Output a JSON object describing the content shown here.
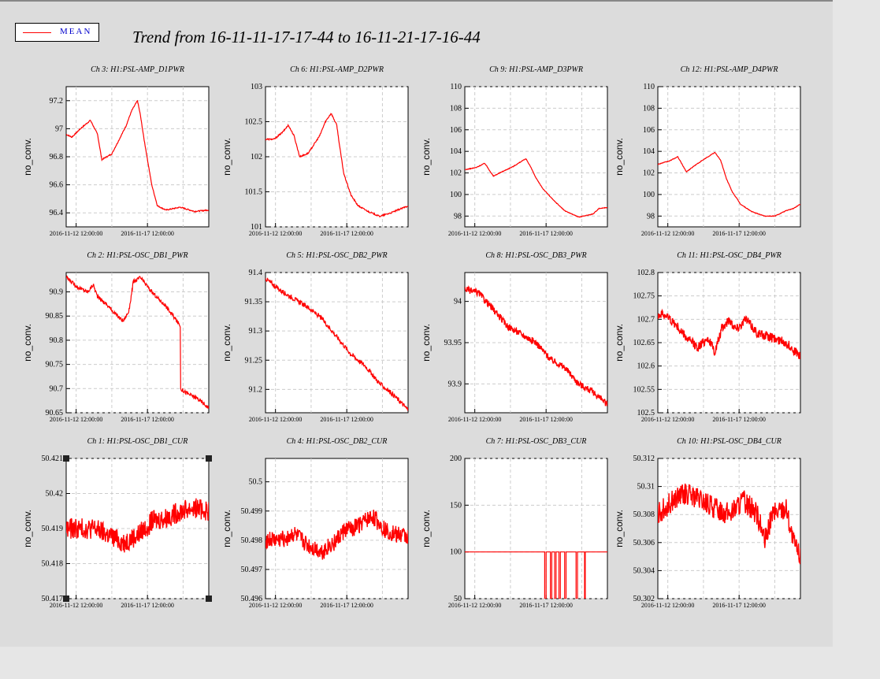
{
  "legend": {
    "label": "MEAN"
  },
  "page_title": "Trend from 16-11-11-17-17-44 to 16-11-21-17-16-44",
  "colors": {
    "series": "#ff0000",
    "background": "#dcdcdc"
  },
  "chart_data": [
    {
      "type": "line",
      "title": "Ch 3: H1:PSL-AMP_D1PWR",
      "ylabel": "no_conv.",
      "ylim": [
        96.3,
        97.3
      ],
      "yticks": [
        "96.4",
        "96.6",
        "96.8",
        "97",
        "97.2"
      ],
      "xticks": [
        "2016-11-12 12:00:00",
        "2016-11-17 12:00:00"
      ],
      "grid": true,
      "noise": 0.004,
      "series": [
        {
          "x": [
            0,
            0.04,
            0.1,
            0.17,
            0.22,
            0.25,
            0.32,
            0.42,
            0.46,
            0.5,
            0.52,
            0.55,
            0.6,
            0.64,
            0.7,
            0.8,
            0.9,
            1.0
          ],
          "y": [
            96.96,
            96.94,
            97.0,
            97.06,
            96.96,
            96.78,
            96.82,
            97.02,
            97.13,
            97.2,
            97.1,
            96.9,
            96.6,
            96.45,
            96.42,
            96.44,
            96.41,
            96.42
          ]
        }
      ]
    },
    {
      "type": "line",
      "title": "Ch 6: H1:PSL-AMP_D2PWR",
      "ylabel": "no_conv.",
      "ylim": [
        101.0,
        103.0
      ],
      "yticks": [
        "101",
        "101.5",
        "102",
        "102.5",
        "103"
      ],
      "xticks": [
        "2016-11-12 12:00:00",
        "2016-11-17 12:00:00"
      ],
      "grid": true,
      "noise": 0.01,
      "series": [
        {
          "x": [
            0,
            0.06,
            0.12,
            0.16,
            0.2,
            0.24,
            0.3,
            0.38,
            0.42,
            0.46,
            0.5,
            0.52,
            0.55,
            0.6,
            0.65,
            0.72,
            0.8,
            0.88,
            1.0
          ],
          "y": [
            102.25,
            102.25,
            102.35,
            102.45,
            102.3,
            102.0,
            102.05,
            102.3,
            102.5,
            102.62,
            102.45,
            102.15,
            101.75,
            101.45,
            101.3,
            101.22,
            101.15,
            101.2,
            101.3
          ]
        }
      ]
    },
    {
      "type": "line",
      "title": "Ch 9: H1:PSL-AMP_D3PWR",
      "ylabel": "no_conv.",
      "ylim": [
        97,
        110
      ],
      "yticks": [
        "98",
        "100",
        "102",
        "104",
        "106",
        "108",
        "110"
      ],
      "xticks": [
        "2016-11-12 12:00:00",
        "2016-11-17 12:00:00"
      ],
      "grid": true,
      "noise": 0.03,
      "series": [
        {
          "x": [
            0,
            0.08,
            0.14,
            0.2,
            0.26,
            0.34,
            0.4,
            0.43,
            0.46,
            0.5,
            0.55,
            0.62,
            0.7,
            0.75,
            0.8,
            0.9,
            0.94,
            1.0
          ],
          "y": [
            102.3,
            102.5,
            102.9,
            101.7,
            102.1,
            102.6,
            103.1,
            103.3,
            102.6,
            101.5,
            100.5,
            99.5,
            98.5,
            98.2,
            97.9,
            98.2,
            98.7,
            98.8
          ]
        }
      ]
    },
    {
      "type": "line",
      "title": "Ch 12: H1:PSL-AMP_D4PWR",
      "ylabel": "no_conv.",
      "ylim": [
        97,
        110
      ],
      "yticks": [
        "98",
        "100",
        "102",
        "104",
        "106",
        "108",
        "110"
      ],
      "xticks": [
        "2016-11-12 12:00:00",
        "2016-11-17 12:00:00"
      ],
      "grid": true,
      "noise": 0.03,
      "series": [
        {
          "x": [
            0,
            0.08,
            0.14,
            0.2,
            0.26,
            0.34,
            0.4,
            0.44,
            0.48,
            0.52,
            0.58,
            0.66,
            0.75,
            0.82,
            0.9,
            0.95,
            1.0
          ],
          "y": [
            102.8,
            103.1,
            103.5,
            102.1,
            102.7,
            103.4,
            103.9,
            103.2,
            101.5,
            100.3,
            99.1,
            98.4,
            98.0,
            98.0,
            98.5,
            98.7,
            99.1
          ]
        }
      ]
    },
    {
      "type": "line",
      "title": "Ch 2: H1:PSL-OSC_DB1_PWR",
      "ylabel": "no_conv.",
      "ylim": [
        90.65,
        90.94
      ],
      "yticks": [
        "90.65",
        "90.7",
        "90.75",
        "90.8",
        "90.85",
        "90.9"
      ],
      "xticks": [
        "2016-11-12 12:00:00",
        "2016-11-17 12:00:00"
      ],
      "grid": true,
      "noise": 0.004,
      "series": [
        {
          "x": [
            0,
            0.08,
            0.15,
            0.19,
            0.22,
            0.28,
            0.36,
            0.4,
            0.44,
            0.47,
            0.52,
            0.6,
            0.7,
            0.8,
            0.8001,
            0.85,
            0.92,
            1.0
          ],
          "y": [
            90.93,
            90.91,
            90.9,
            90.915,
            90.89,
            90.875,
            90.85,
            90.84,
            90.86,
            90.92,
            90.93,
            90.9,
            90.87,
            90.83,
            90.7,
            90.69,
            90.68,
            90.66
          ]
        }
      ]
    },
    {
      "type": "line",
      "title": "Ch 5: H1:PSL-OSC_DB2_PWR",
      "ylabel": "no_conv.",
      "ylim": [
        91.16,
        91.4
      ],
      "yticks": [
        "91.2",
        "91.25",
        "91.3",
        "91.35",
        "91.4"
      ],
      "xticks": [
        "2016-11-12 12:00:00",
        "2016-11-17 12:00:00"
      ],
      "grid": true,
      "noise": 0.004,
      "series": [
        {
          "x": [
            0,
            0.1,
            0.2,
            0.3,
            0.4,
            0.5,
            0.6,
            0.7,
            0.8,
            0.9,
            1.0
          ],
          "y": [
            91.39,
            91.37,
            91.355,
            91.34,
            91.32,
            91.29,
            91.26,
            91.24,
            91.21,
            91.19,
            91.165
          ]
        }
      ]
    },
    {
      "type": "line",
      "title": "Ch 8: H1:PSL-OSC_DB3_PWR",
      "ylabel": "no_conv.",
      "ylim": [
        93.865,
        94.035
      ],
      "yticks": [
        "93.9",
        "93.95",
        "94"
      ],
      "xticks": [
        "2016-11-12 12:00:00",
        "2016-11-17 12:00:00"
      ],
      "grid": true,
      "noise": 0.004,
      "series": [
        {
          "x": [
            0,
            0.1,
            0.2,
            0.3,
            0.4,
            0.5,
            0.6,
            0.7,
            0.8,
            0.9,
            1.0
          ],
          "y": [
            94.015,
            94.01,
            93.99,
            93.97,
            93.96,
            93.95,
            93.93,
            93.92,
            93.9,
            93.89,
            93.875
          ]
        }
      ]
    },
    {
      "type": "line",
      "title": "Ch 11: H1:PSL-OSC_DB4_PWR",
      "ylabel": "no_conv.",
      "ylim": [
        102.5,
        102.8
      ],
      "yticks": [
        "102.5",
        "102.55",
        "102.6",
        "102.65",
        "102.7",
        "102.75",
        "102.8"
      ],
      "xticks": [
        "2016-11-12 12:00:00",
        "2016-11-17 12:00:00"
      ],
      "grid": true,
      "noise": 0.01,
      "series": [
        {
          "x": [
            0,
            0.05,
            0.12,
            0.2,
            0.28,
            0.35,
            0.4,
            0.45,
            0.5,
            0.55,
            0.62,
            0.7,
            0.8,
            0.9,
            1.0
          ],
          "y": [
            102.71,
            102.71,
            102.69,
            102.66,
            102.64,
            102.66,
            102.63,
            102.68,
            102.7,
            102.68,
            102.7,
            102.67,
            102.66,
            102.65,
            102.62
          ]
        }
      ]
    },
    {
      "type": "line",
      "title": "Ch 1: H1:PSL-OSC_DB1_CUR",
      "ylabel": "no_conv.",
      "ylim": [
        50.417,
        50.421
      ],
      "yticks": [
        "50.417",
        "50.418",
        "50.419",
        "50.42",
        "50.421"
      ],
      "xticks": [
        "2016-11-12 12:00:00",
        "2016-11-17 12:00:00"
      ],
      "grid": true,
      "noise": 0.0003,
      "series": [
        {
          "x": [
            0,
            0.1,
            0.2,
            0.3,
            0.4,
            0.5,
            0.6,
            0.7,
            0.8,
            0.9,
            1.0
          ],
          "y": [
            50.419,
            50.419,
            50.419,
            50.4188,
            50.4186,
            50.4188,
            50.4192,
            50.4193,
            50.4195,
            50.4196,
            50.4195
          ]
        }
      ]
    },
    {
      "type": "line",
      "title": "Ch 4: H1:PSL-OSC_DB2_CUR",
      "ylabel": "no_conv.",
      "ylim": [
        50.496,
        50.5008
      ],
      "yticks": [
        "50.496",
        "50.497",
        "50.498",
        "50.499",
        "50.5"
      ],
      "xticks": [
        "2016-11-12 12:00:00",
        "2016-11-17 12:00:00"
      ],
      "grid": true,
      "noise": 0.0003,
      "series": [
        {
          "x": [
            0,
            0.1,
            0.2,
            0.3,
            0.4,
            0.5,
            0.55,
            0.65,
            0.75,
            0.85,
            1.0
          ],
          "y": [
            50.498,
            50.498,
            50.4982,
            50.4978,
            50.4976,
            50.498,
            50.4983,
            50.4985,
            50.4988,
            50.4983,
            50.4981
          ]
        }
      ]
    },
    {
      "type": "line",
      "title": "Ch 7: H1:PSL-OSC_DB3_CUR",
      "ylabel": "no_conv.",
      "ylim": [
        50,
        200
      ],
      "yticks": [
        "50",
        "100",
        "150",
        "200"
      ],
      "xticks": [
        "2016-11-12 12:00:00",
        "2016-11-17 12:00:00"
      ],
      "grid": true,
      "noise": 0,
      "series": [
        {
          "x": [
            0,
            0.55,
            0.56,
            0.57,
            0.6,
            0.61,
            0.63,
            0.64,
            0.66,
            0.67,
            0.7,
            0.71,
            0.78,
            0.79,
            0.84,
            0.845,
            1.0
          ],
          "y": [
            100,
            100,
            50,
            100,
            50,
            100,
            50,
            100,
            50,
            100,
            50,
            100,
            50,
            100,
            50,
            100,
            100
          ]
        }
      ]
    },
    {
      "type": "line",
      "title": "Ch 10: H1:PSL-OSC_DB4_CUR",
      "ylabel": "no_conv.",
      "ylim": [
        50.302,
        50.312
      ],
      "yticks": [
        "50.302",
        "50.304",
        "50.306",
        "50.308",
        "50.31",
        "50.312"
      ],
      "xticks": [
        "2016-11-12 12:00:00",
        "2016-11-17 12:00:00"
      ],
      "grid": true,
      "noise": 0.0008,
      "series": [
        {
          "x": [
            0,
            0.1,
            0.2,
            0.3,
            0.4,
            0.5,
            0.6,
            0.7,
            0.75,
            0.8,
            0.9,
            0.95,
            1.0
          ],
          "y": [
            50.308,
            50.309,
            50.3095,
            50.309,
            50.3085,
            50.308,
            50.309,
            50.308,
            50.306,
            50.308,
            50.3085,
            50.306,
            50.305
          ]
        }
      ]
    }
  ]
}
